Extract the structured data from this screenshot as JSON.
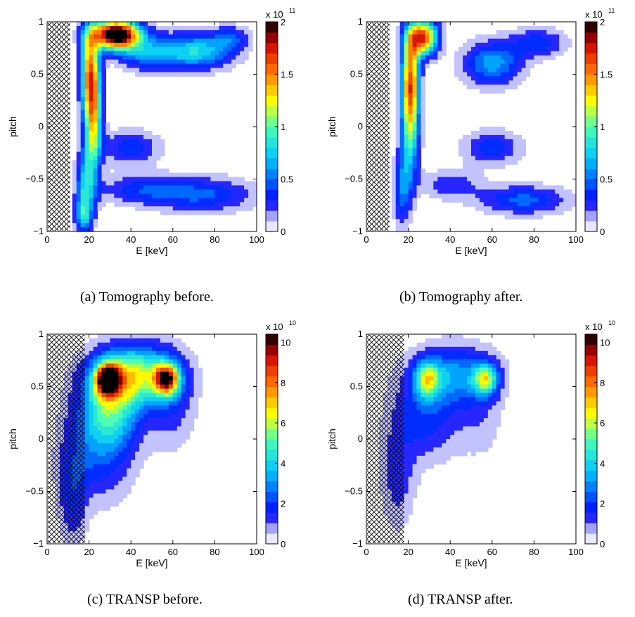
{
  "chart_data": [
    {
      "id": "a",
      "type": "heatmap",
      "caption": "(a)  Tomography before.",
      "xlabel": "E [keV]",
      "ylabel": "pitch",
      "xlim": [
        0,
        100
      ],
      "ylim": [
        -1,
        1
      ],
      "xticks": [
        "0",
        "20",
        "40",
        "60",
        "80",
        "100"
      ],
      "yticks": [
        "−1",
        "−0.5",
        "0",
        "0.5",
        "1"
      ],
      "colorbar": {
        "ticks": [
          "0",
          "0.5",
          "1",
          "1.5",
          "2"
        ],
        "range": [
          0,
          2
        ],
        "exponent_prefix": "x 10",
        "exponent": "11"
      },
      "hatched_region": {
        "x": [
          0,
          11
        ]
      },
      "peaks": [
        {
          "x": 33,
          "y": 0.88,
          "value": 2.3,
          "sx": 8,
          "sy": 0.1
        },
        {
          "x": 20,
          "y": 0.55,
          "value": 1.1,
          "sx": 3,
          "sy": 0.3
        },
        {
          "x": 22,
          "y": 0.1,
          "value": 1.3,
          "sx": 3,
          "sy": 0.4
        },
        {
          "x": 18,
          "y": -0.6,
          "value": 0.75,
          "sx": 3,
          "sy": 0.25
        },
        {
          "x": 17,
          "y": -0.85,
          "value": 0.55,
          "sx": 3,
          "sy": 0.1
        },
        {
          "x": 48,
          "y": 0.7,
          "value": 0.6,
          "sx": 10,
          "sy": 0.12
        },
        {
          "x": 72,
          "y": 0.72,
          "value": 0.85,
          "sx": 12,
          "sy": 0.12
        },
        {
          "x": 88,
          "y": 0.85,
          "value": 0.4,
          "sx": 6,
          "sy": 0.08
        },
        {
          "x": 45,
          "y": -0.6,
          "value": 0.4,
          "sx": 15,
          "sy": 0.1
        },
        {
          "x": 75,
          "y": -0.65,
          "value": 0.5,
          "sx": 18,
          "sy": 0.12
        },
        {
          "x": 40,
          "y": -0.2,
          "value": 0.45,
          "sx": 10,
          "sy": 0.12
        }
      ]
    },
    {
      "id": "b",
      "type": "heatmap",
      "caption": "(b)  Tomography after.",
      "xlabel": "E [keV]",
      "ylabel": "pitch",
      "xlim": [
        0,
        100
      ],
      "ylim": [
        -1,
        1
      ],
      "xticks": [
        "0",
        "20",
        "40",
        "60",
        "80",
        "100"
      ],
      "yticks": [
        "−1",
        "−0.5",
        "0",
        "0.5",
        "1"
      ],
      "colorbar": {
        "ticks": [
          "0",
          "0.5",
          "1",
          "1.5",
          "2"
        ],
        "range": [
          0,
          2
        ],
        "exponent_prefix": "x 10",
        "exponent": "11"
      },
      "hatched_region": {
        "x": [
          0,
          11
        ]
      },
      "peaks": [
        {
          "x": 27,
          "y": 0.85,
          "value": 1.7,
          "sx": 5,
          "sy": 0.12
        },
        {
          "x": 21,
          "y": 0.5,
          "value": 1.3,
          "sx": 3,
          "sy": 0.3
        },
        {
          "x": 21,
          "y": 0.0,
          "value": 1.0,
          "sx": 3,
          "sy": 0.35
        },
        {
          "x": 17,
          "y": -0.6,
          "value": 0.55,
          "sx": 3,
          "sy": 0.25
        },
        {
          "x": 60,
          "y": 0.6,
          "value": 0.7,
          "sx": 10,
          "sy": 0.15
        },
        {
          "x": 82,
          "y": 0.8,
          "value": 0.45,
          "sx": 10,
          "sy": 0.1
        },
        {
          "x": 60,
          "y": -0.2,
          "value": 0.45,
          "sx": 10,
          "sy": 0.12
        },
        {
          "x": 75,
          "y": -0.7,
          "value": 0.55,
          "sx": 15,
          "sy": 0.1
        },
        {
          "x": 40,
          "y": -0.55,
          "value": 0.35,
          "sx": 10,
          "sy": 0.1
        }
      ]
    },
    {
      "id": "c",
      "type": "heatmap",
      "caption": "(c)  TRANSP before.",
      "xlabel": "E [keV]",
      "ylabel": "pitch",
      "xlim": [
        0,
        100
      ],
      "ylim": [
        -1,
        1
      ],
      "xticks": [
        "0",
        "20",
        "40",
        "60",
        "80",
        "100"
      ],
      "yticks": [
        "−1",
        "−0.5",
        "0",
        "0.5",
        "1"
      ],
      "colorbar": {
        "ticks": [
          "0",
          "2",
          "4",
          "6",
          "8",
          "10"
        ],
        "range": [
          0,
          10.4
        ],
        "exponent_prefix": "x 10",
        "exponent": "10"
      },
      "hatched_region": {
        "x": [
          0,
          18
        ]
      },
      "peaks": [
        {
          "x": 29,
          "y": 0.57,
          "value": 8.8,
          "sx": 4,
          "sy": 0.1
        },
        {
          "x": 57,
          "y": 0.57,
          "value": 7.5,
          "sx": 4,
          "sy": 0.1
        },
        {
          "x": 42,
          "y": 0.62,
          "value": 6.0,
          "sx": 14,
          "sy": 0.2
        },
        {
          "x": 30,
          "y": 0.3,
          "value": 4.0,
          "sx": 10,
          "sy": 0.25
        },
        {
          "x": 25,
          "y": -0.1,
          "value": 2.5,
          "sx": 12,
          "sy": 0.35
        },
        {
          "x": 12,
          "y": -0.55,
          "value": 1.8,
          "sx": 5,
          "sy": 0.35
        },
        {
          "x": 60,
          "y": 0.3,
          "value": 1.5,
          "sx": 8,
          "sy": 0.3
        }
      ]
    },
    {
      "id": "d",
      "type": "heatmap",
      "caption": "(d)  TRANSP after.",
      "xlabel": "E [keV]",
      "ylabel": "pitch",
      "xlim": [
        0,
        100
      ],
      "ylim": [
        -1,
        1
      ],
      "xticks": [
        "0",
        "20",
        "40",
        "60",
        "80",
        "100"
      ],
      "yticks": [
        "−1",
        "−0.5",
        "0",
        "0.5",
        "1"
      ],
      "colorbar": {
        "ticks": [
          "0",
          "2",
          "4",
          "6",
          "8",
          "10"
        ],
        "range": [
          0,
          10.4
        ],
        "exponent_prefix": "x 10",
        "exponent": "10"
      },
      "hatched_region": {
        "x": [
          0,
          18
        ]
      },
      "peaks": [
        {
          "x": 29,
          "y": 0.57,
          "value": 4.5,
          "sx": 4,
          "sy": 0.12
        },
        {
          "x": 57,
          "y": 0.57,
          "value": 5.0,
          "sx": 4,
          "sy": 0.1
        },
        {
          "x": 42,
          "y": 0.62,
          "value": 3.2,
          "sx": 14,
          "sy": 0.2
        },
        {
          "x": 28,
          "y": 0.2,
          "value": 2.2,
          "sx": 12,
          "sy": 0.3
        },
        {
          "x": 15,
          "y": -0.4,
          "value": 1.6,
          "sx": 6,
          "sy": 0.35
        },
        {
          "x": 55,
          "y": 0.2,
          "value": 1.0,
          "sx": 8,
          "sy": 0.3
        }
      ]
    }
  ]
}
